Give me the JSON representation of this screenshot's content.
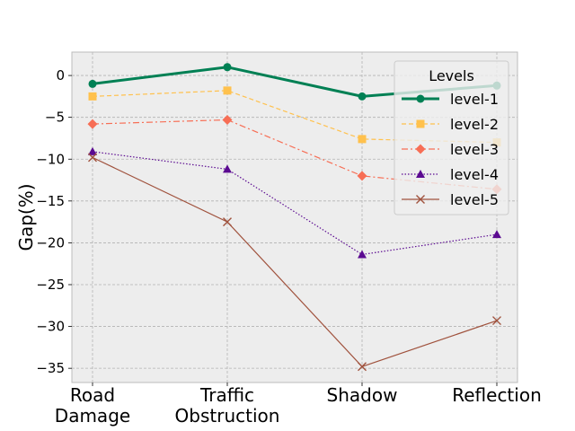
{
  "chart_data": {
    "type": "line",
    "title": "",
    "xlabel": "",
    "ylabel": "Gap(%)",
    "categories": [
      [
        "Road",
        "Damage"
      ],
      [
        "Traffic",
        "Obstruction"
      ],
      [
        "Shadow"
      ],
      [
        "Reflection"
      ]
    ],
    "ylim": [
      -36.7,
      2.8
    ],
    "yticks": [
      0,
      -5,
      -10,
      -15,
      -20,
      -25,
      -30,
      -35
    ],
    "ytick_labels": [
      "0",
      "−5",
      "−10",
      "−15",
      "−20",
      "−25",
      "−30",
      "−35"
    ],
    "grid": true,
    "legend": {
      "title": "Levels",
      "position": "top-right"
    },
    "series": [
      {
        "name": "level-1",
        "values": [
          -1.0,
          1.0,
          -2.5,
          -1.2
        ],
        "color": "#008054",
        "marker": "circle",
        "dash": "solid",
        "width": 3
      },
      {
        "name": "level-2",
        "values": [
          -2.5,
          -1.8,
          -7.6,
          -8.0
        ],
        "color": "#ffc14d",
        "marker": "square",
        "dash": "dashed",
        "width": 1.2
      },
      {
        "name": "level-3",
        "values": [
          -5.8,
          -5.3,
          -12.0,
          -13.6
        ],
        "color": "#f76e55",
        "marker": "diamond",
        "dash": "dashdot",
        "width": 1.2
      },
      {
        "name": "level-4",
        "values": [
          -9.1,
          -11.2,
          -21.4,
          -19.0
        ],
        "color": "#5b0a91",
        "marker": "triangle",
        "dash": "dotted",
        "width": 1.2
      },
      {
        "name": "level-5",
        "values": [
          -9.8,
          -17.5,
          -34.8,
          -29.3
        ],
        "color": "#a0523d",
        "marker": "x",
        "dash": "solid",
        "width": 1.2
      }
    ]
  }
}
